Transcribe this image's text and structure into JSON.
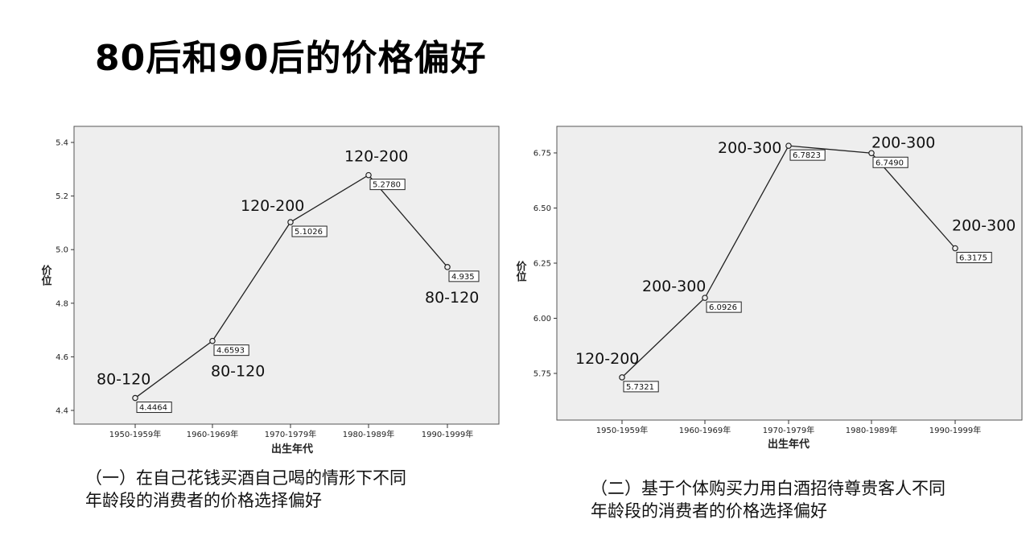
{
  "title": "80后和90后的价格偏好",
  "chart_data": [
    {
      "type": "line",
      "categories": [
        "1950-1959年",
        "1960-1969年",
        "1970-1979年",
        "1980-1989年",
        "1990-1999年"
      ],
      "values": [
        4.4464,
        4.6593,
        5.1026,
        5.278,
        4.935
      ],
      "data_labels": [
        "4.4464",
        "4.6593",
        "5.1026",
        "5.2780",
        "4.935"
      ],
      "annotations": [
        "80-120",
        "80-120",
        "120-200",
        "120-200",
        "80-120"
      ],
      "xlabel": "出生年代",
      "ylabel": "价位",
      "ylim": [
        4.4,
        5.4
      ],
      "yticks": [
        "4.4",
        "4.6",
        "4.8",
        "5.0",
        "5.2",
        "5.4"
      ],
      "caption": "（一）在自己花钱买酒自己喝的情形下不同\n年龄段的消费者的价格选择偏好"
    },
    {
      "type": "line",
      "categories": [
        "1950-1959年",
        "1960-1969年",
        "1970-1979年",
        "1980-1989年",
        "1990-1999年"
      ],
      "values": [
        5.7321,
        6.0926,
        6.7823,
        6.749,
        6.3175
      ],
      "data_labels": [
        "5.7321",
        "6.0926",
        "6.7823",
        "6.7490",
        "6.3175"
      ],
      "annotations": [
        "120-200",
        "200-300",
        "200-300",
        "200-300",
        "200-300"
      ],
      "xlabel": "出生年代",
      "ylabel": "价位",
      "ylim": [
        5.75,
        6.75
      ],
      "yticks": [
        "5.75",
        "6.00",
        "6.25",
        "6.50",
        "6.75"
      ],
      "caption": "（二）基于个体购买力用白酒招待尊贵客人不同\n年龄段的消费者的价格选择偏好"
    }
  ]
}
